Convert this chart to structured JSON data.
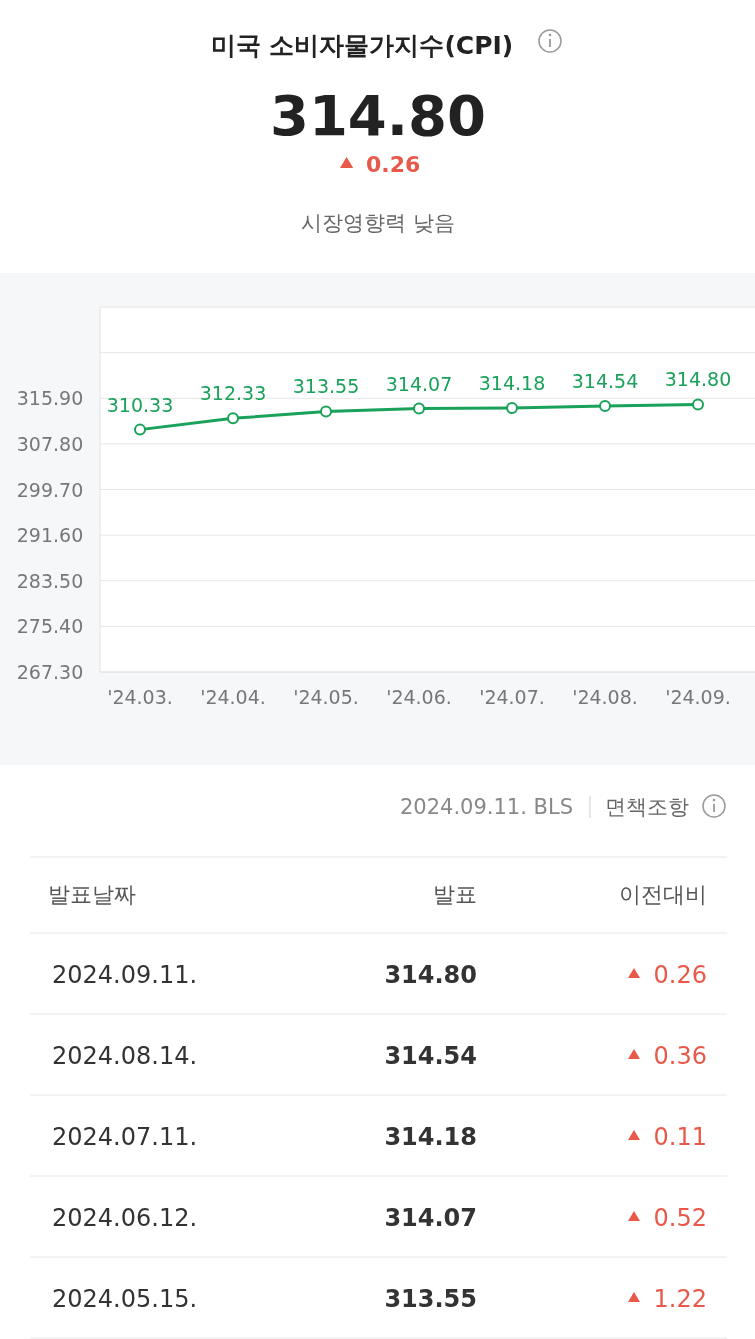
{
  "chart_data": {
    "type": "line",
    "title": "미국 소비자물가지수(CPI)",
    "categories": [
      "'24.03.",
      "'24.04.",
      "'24.05.",
      "'24.06.",
      "'24.07.",
      "'24.08.",
      "'24.09."
    ],
    "series": [
      {
        "color": "#1aa15a",
        "values": [
          310.33,
          312.33,
          313.55,
          314.07,
          314.18,
          314.54,
          314.8
        ],
        "value_labels": [
          "310.33",
          "312.33",
          "313.55",
          "314.07",
          "314.18",
          "314.54",
          "314.80"
        ]
      }
    ],
    "ylim": [
      267.3,
      332.1
    ],
    "yticks": [
      {
        "value": 267.3,
        "label": "267.30"
      },
      {
        "value": 275.4,
        "label": "275.40"
      },
      {
        "value": 283.5,
        "label": "283.50"
      },
      {
        "value": 291.6,
        "label": "291.60"
      },
      {
        "value": 299.7,
        "label": "299.70"
      },
      {
        "value": 307.8,
        "label": "307.80"
      },
      {
        "value": 315.9,
        "label": "315.90"
      },
      {
        "value": 324,
        "label": null
      },
      {
        "value": 332.1,
        "label": null
      }
    ],
    "grid": "y",
    "marker": "circle",
    "annotations": [
      "314.80",
      "0.26",
      "시장영향력 낮음",
      "2024.09.11. BLS",
      "면책조항",
      "발표날짜",
      "발표",
      "이전대비",
      "2024.09.11.",
      "314.80",
      "0.26",
      "2024.08.14.",
      "314.54",
      "0.36",
      "2024.07.11.",
      "314.18",
      "0.11",
      "2024.06.12.",
      "314.07",
      "0.52",
      "2024.05.15.",
      "313.55",
      "1.22"
    ]
  }
}
